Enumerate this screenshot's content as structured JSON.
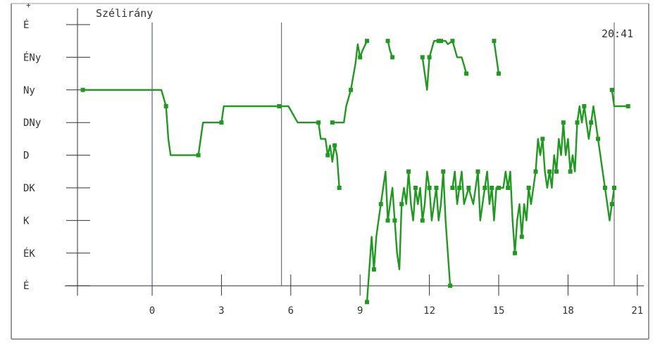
{
  "chart_data": {
    "type": "line",
    "title": "Szélirány",
    "time_label": "20:41",
    "top_mark": "+",
    "x_ticks": [
      0,
      3,
      6,
      9,
      12,
      15,
      18,
      21
    ],
    "xlim": [
      -3.2,
      21.6
    ],
    "y_ticks": [
      "É",
      "ÉNy",
      "Ny",
      "DNy",
      "D",
      "DK",
      "K",
      "ÉK",
      "É"
    ],
    "vertical_markers": [
      0,
      5.6,
      20
    ],
    "colors": {
      "series": "#1e9b1e",
      "axis": "#333333",
      "marker_0": "#3b3b8c",
      "marker": "#555555"
    },
    "series": [
      {
        "segments": [
          [
            [
              -3.0,
              2.0
            ],
            [
              -1.0,
              2.0
            ],
            [
              0.4,
              2.0
            ],
            [
              0.6,
              2.5
            ],
            [
              0.7,
              3.5
            ],
            [
              0.8,
              4.0
            ],
            [
              2.0,
              4.0
            ],
            [
              2.1,
              3.5
            ],
            [
              2.2,
              3.0
            ],
            [
              3.0,
              3.0
            ],
            [
              3.1,
              2.5
            ],
            [
              4.0,
              2.5
            ],
            [
              5.5,
              2.5
            ],
            [
              5.9,
              2.5
            ],
            [
              6.3,
              3.0
            ],
            [
              7.2,
              3.0
            ],
            [
              7.3,
              3.5
            ],
            [
              7.5,
              3.5
            ],
            [
              7.6,
              4.0
            ],
            [
              7.7,
              3.7
            ],
            [
              7.8,
              4.2
            ],
            [
              7.9,
              3.7
            ],
            [
              8.0,
              4.0
            ],
            [
              8.1,
              5.0
            ]
          ],
          [
            [
              7.8,
              3.0
            ],
            [
              8.3,
              3.0
            ],
            [
              8.4,
              2.5
            ],
            [
              8.6,
              2.0
            ],
            [
              8.8,
              1.2
            ],
            [
              8.9,
              0.6
            ],
            [
              9.0,
              1.0
            ],
            [
              9.1,
              0.8
            ],
            [
              9.3,
              0.5
            ]
          ],
          [
            [
              10.2,
              0.5
            ],
            [
              10.3,
              0.8
            ],
            [
              10.4,
              1.0
            ]
          ],
          [
            [
              11.7,
              1.0
            ],
            [
              11.8,
              1.5
            ],
            [
              11.9,
              2.0
            ],
            [
              12.0,
              1.0
            ],
            [
              12.2,
              0.5
            ],
            [
              12.4,
              0.5
            ]
          ],
          [
            [
              12.5,
              0.5
            ],
            [
              12.7,
              0.5
            ],
            [
              12.8,
              0.6
            ],
            [
              13.0,
              0.5
            ],
            [
              13.2,
              1.0
            ],
            [
              13.4,
              1.0
            ],
            [
              13.6,
              1.5
            ]
          ],
          [
            [
              14.8,
              0.5
            ],
            [
              14.9,
              1.0
            ],
            [
              15.0,
              1.5
            ]
          ],
          [
            [
              9.3,
              8.5
            ],
            [
              9.4,
              7.5
            ],
            [
              9.5,
              6.5
            ],
            [
              9.6,
              7.5
            ],
            [
              9.7,
              6.5
            ],
            [
              9.8,
              6.0
            ],
            [
              9.9,
              5.5
            ],
            [
              10.0,
              5.0
            ],
            [
              10.1,
              4.5
            ],
            [
              10.2,
              6.0
            ],
            [
              10.3,
              5.5
            ],
            [
              10.4,
              5.0
            ],
            [
              10.5,
              6.0
            ],
            [
              10.6,
              7.0
            ],
            [
              10.7,
              7.5
            ],
            [
              10.8,
              5.5
            ],
            [
              10.9,
              5.0
            ],
            [
              11.0,
              5.5
            ],
            [
              11.1,
              4.5
            ],
            [
              11.2,
              5.5
            ],
            [
              11.3,
              6.0
            ],
            [
              11.4,
              5.0
            ],
            [
              11.5,
              5.5
            ],
            [
              11.6,
              5.0
            ],
            [
              11.7,
              6.0
            ],
            [
              11.8,
              5.5
            ],
            [
              11.9,
              4.5
            ],
            [
              12.0,
              5.0
            ],
            [
              12.1,
              6.0
            ],
            [
              12.2,
              5.5
            ],
            [
              12.3,
              5.0
            ],
            [
              12.4,
              6.0
            ],
            [
              12.5,
              5.5
            ],
            [
              12.6,
              4.5
            ],
            [
              12.7,
              6.0
            ],
            [
              12.8,
              7.0
            ],
            [
              12.9,
              8.0
            ]
          ],
          [
            [
              13.0,
              5.0
            ],
            [
              13.1,
              4.5
            ],
            [
              13.2,
              5.5
            ],
            [
              13.3,
              5.0
            ],
            [
              13.4,
              4.5
            ],
            [
              13.5,
              5.5
            ],
            [
              13.7,
              5.0
            ],
            [
              13.9,
              5.5
            ],
            [
              14.0,
              5.0
            ],
            [
              14.1,
              4.5
            ],
            [
              14.2,
              6.0
            ],
            [
              14.3,
              5.5
            ],
            [
              14.4,
              5.0
            ],
            [
              14.5,
              4.5
            ],
            [
              14.6,
              5.5
            ],
            [
              14.7,
              5.0
            ],
            [
              14.8,
              6.0
            ],
            [
              14.9,
              5.0
            ],
            [
              15.0,
              5.0
            ],
            [
              15.2,
              5.0
            ],
            [
              15.3,
              4.5
            ],
            [
              15.4,
              5.0
            ],
            [
              15.5,
              4.5
            ],
            [
              15.6,
              6.0
            ],
            [
              15.7,
              7.0
            ],
            [
              15.8,
              6.0
            ],
            [
              15.9,
              5.5
            ],
            [
              16.0,
              6.5
            ],
            [
              16.1,
              5.5
            ],
            [
              16.2,
              6.0
            ],
            [
              16.3,
              5.0
            ],
            [
              16.4,
              5.5
            ],
            [
              16.5,
              5.0
            ],
            [
              16.6,
              4.5
            ],
            [
              16.7,
              3.5
            ],
            [
              16.8,
              4.0
            ],
            [
              16.9,
              3.5
            ],
            [
              17.0,
              4.5
            ],
            [
              17.1,
              5.0
            ],
            [
              17.2,
              4.5
            ],
            [
              17.3,
              5.0
            ],
            [
              17.4,
              4.0
            ],
            [
              17.5,
              4.5
            ],
            [
              17.6,
              3.5
            ],
            [
              17.7,
              4.0
            ],
            [
              17.8,
              3.0
            ],
            [
              17.9,
              4.0
            ],
            [
              18.0,
              3.5
            ],
            [
              18.1,
              4.5
            ],
            [
              18.2,
              4.0
            ],
            [
              18.3,
              4.5
            ],
            [
              18.4,
              3.0
            ],
            [
              18.5,
              2.5
            ],
            [
              18.6,
              3.0
            ],
            [
              18.7,
              2.5
            ],
            [
              18.8,
              3.0
            ],
            [
              18.9,
              3.5
            ],
            [
              19.0,
              3.0
            ],
            [
              19.1,
              2.5
            ],
            [
              19.2,
              3.0
            ],
            [
              19.3,
              3.5
            ],
            [
              19.4,
              4.0
            ],
            [
              19.5,
              4.5
            ],
            [
              19.6,
              5.0
            ],
            [
              19.7,
              5.5
            ],
            [
              19.8,
              6.0
            ],
            [
              19.9,
              5.5
            ],
            [
              20.0,
              5.0
            ]
          ],
          [
            [
              19.9,
              2.0
            ],
            [
              20.0,
              2.5
            ],
            [
              20.1,
              2.5
            ],
            [
              20.6,
              2.5
            ]
          ]
        ]
      }
    ]
  }
}
